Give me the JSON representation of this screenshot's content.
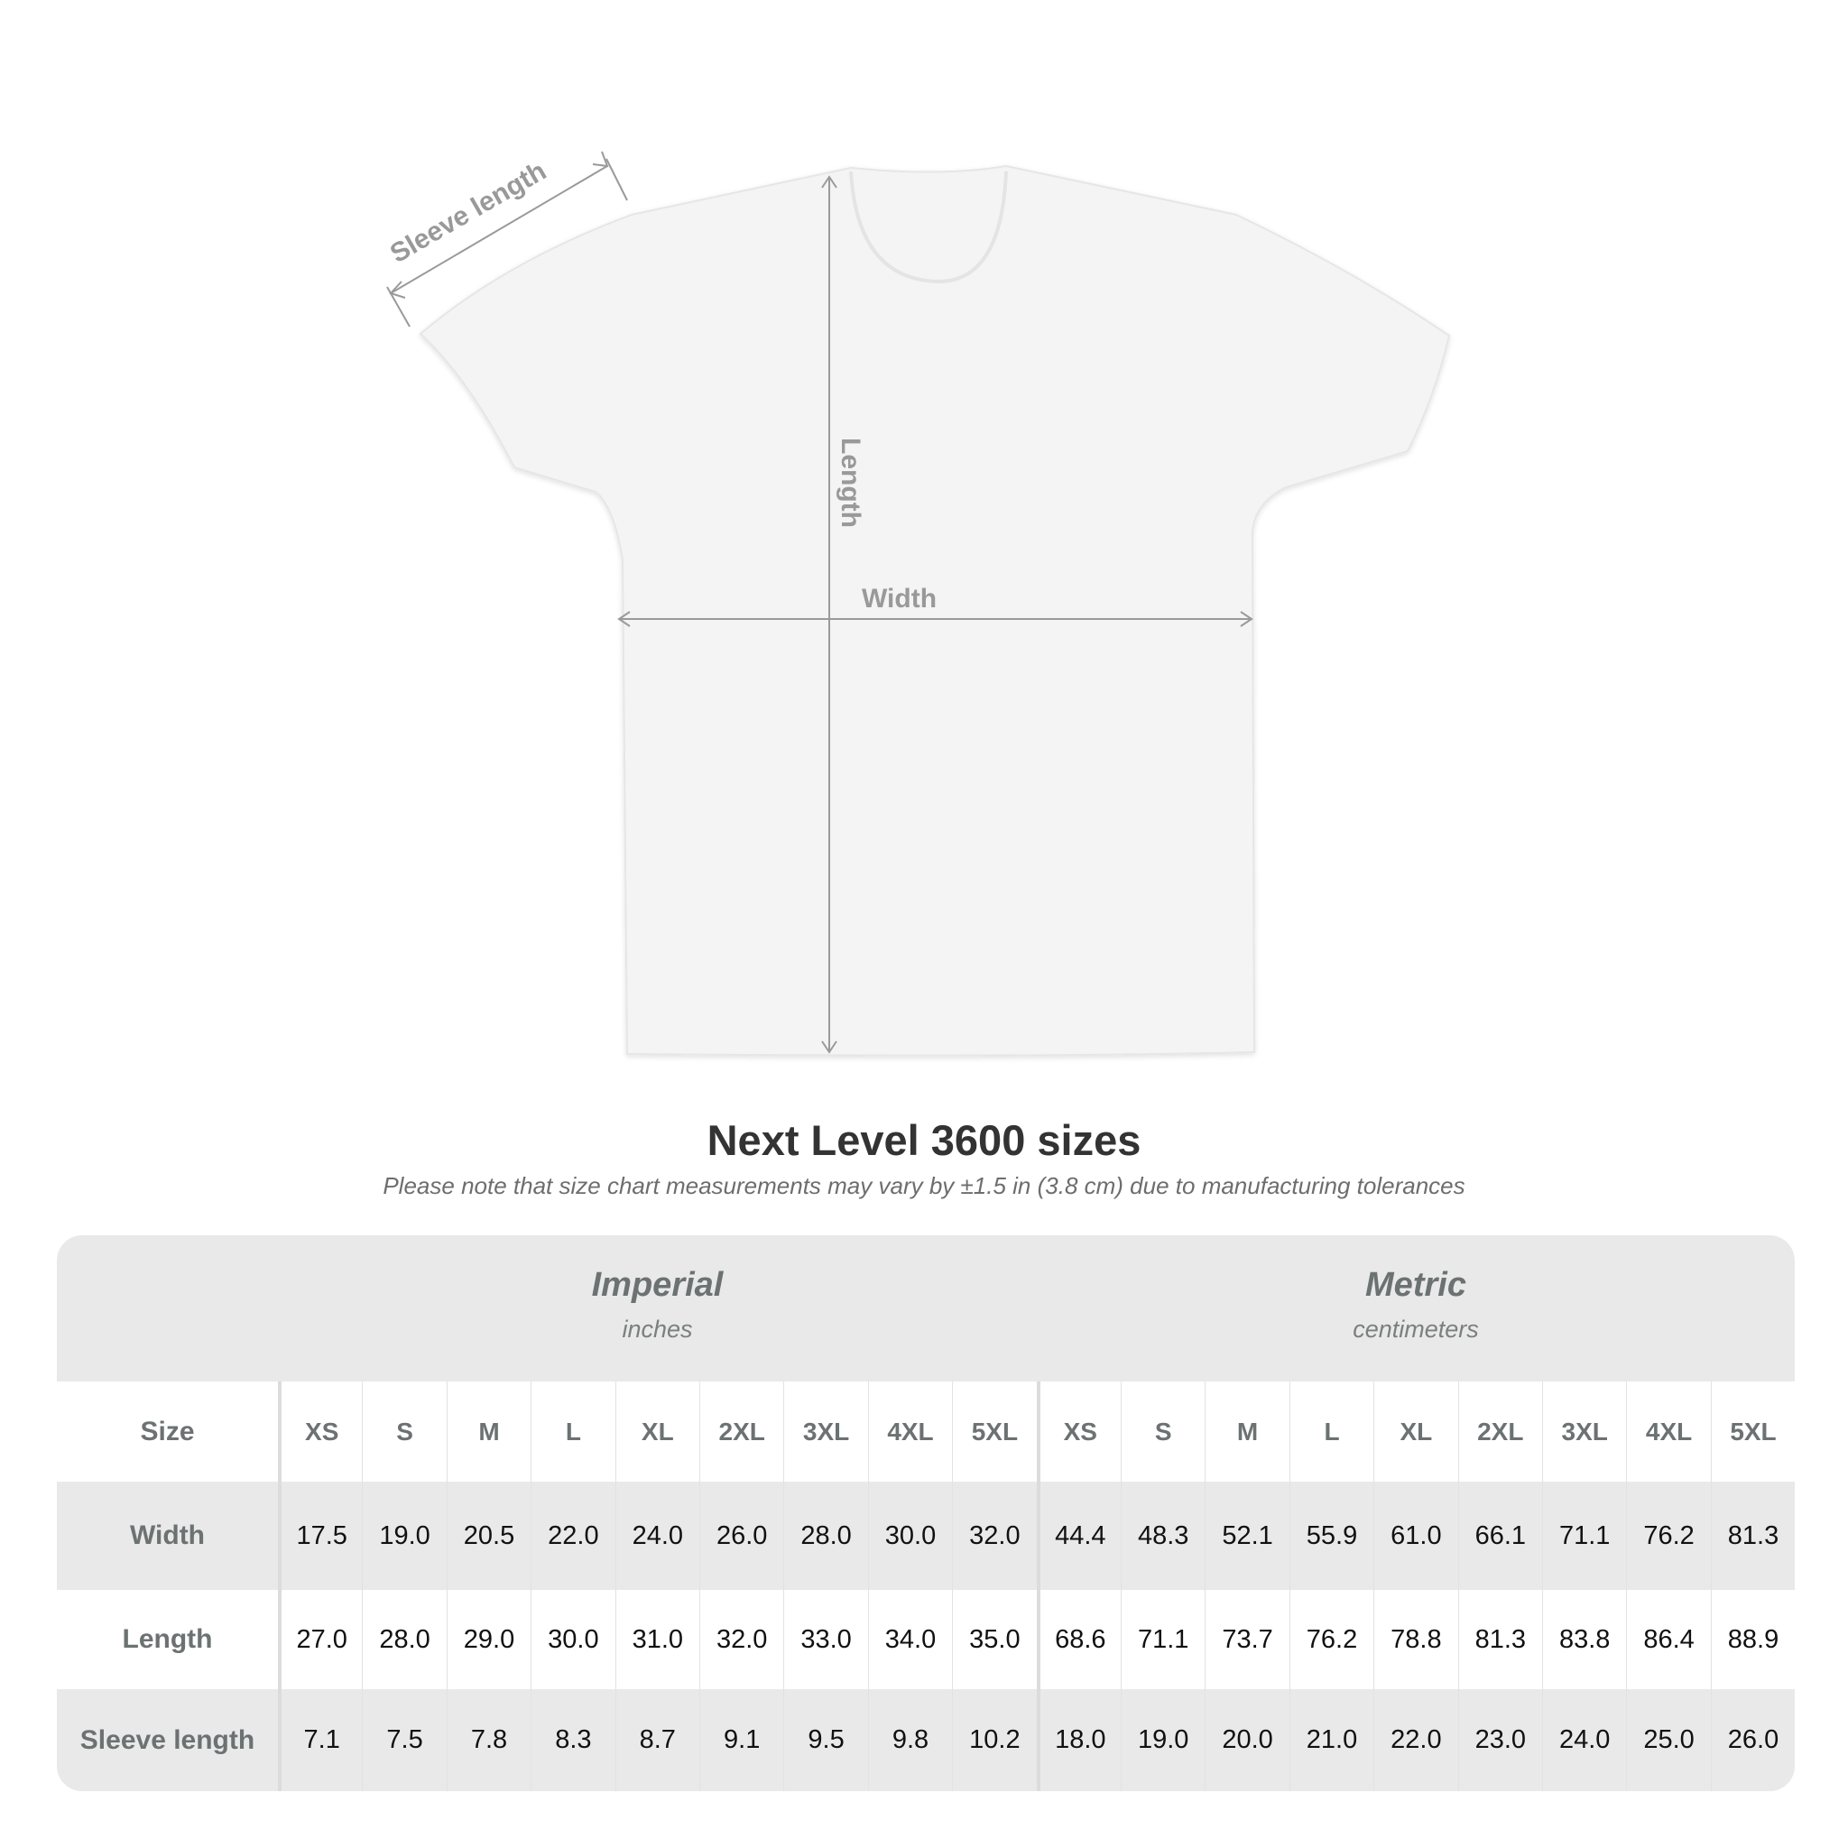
{
  "diagram": {
    "sleeve_label": "Sleeve length",
    "length_label": "Length",
    "width_label": "Width"
  },
  "title": "Next Level 3600 sizes",
  "subtitle": "Please note that size chart measurements may vary by ±1.5 in (3.8 cm) due to manufacturing tolerances",
  "table": {
    "imperial": {
      "title": "Imperial",
      "unit": "inches"
    },
    "metric": {
      "title": "Metric",
      "unit": "centimeters"
    },
    "size_label": "Size",
    "sizes": [
      "XS",
      "S",
      "M",
      "L",
      "XL",
      "2XL",
      "3XL",
      "4XL",
      "5XL"
    ],
    "rows": [
      {
        "label": "Width",
        "imperial": [
          "17.5",
          "19.0",
          "20.5",
          "22.0",
          "24.0",
          "26.0",
          "28.0",
          "30.0",
          "32.0"
        ],
        "metric": [
          "44.4",
          "48.3",
          "52.1",
          "55.9",
          "61.0",
          "66.1",
          "71.1",
          "76.2",
          "81.3"
        ]
      },
      {
        "label": "Length",
        "imperial": [
          "27.0",
          "28.0",
          "29.0",
          "30.0",
          "31.0",
          "32.0",
          "33.0",
          "34.0",
          "35.0"
        ],
        "metric": [
          "68.6",
          "71.1",
          "73.7",
          "76.2",
          "78.8",
          "81.3",
          "83.8",
          "86.4",
          "88.9"
        ]
      },
      {
        "label": "Sleeve length",
        "imperial": [
          "7.1",
          "7.5",
          "7.8",
          "8.3",
          "8.7",
          "9.1",
          "9.5",
          "9.8",
          "10.2"
        ],
        "metric": [
          "18.0",
          "19.0",
          "20.0",
          "21.0",
          "22.0",
          "23.0",
          "24.0",
          "25.0",
          "26.0"
        ]
      }
    ]
  },
  "colors": {
    "header_bg": "#e9e9e9",
    "label_text": "#6c7272",
    "measure_lines": "#999999"
  }
}
